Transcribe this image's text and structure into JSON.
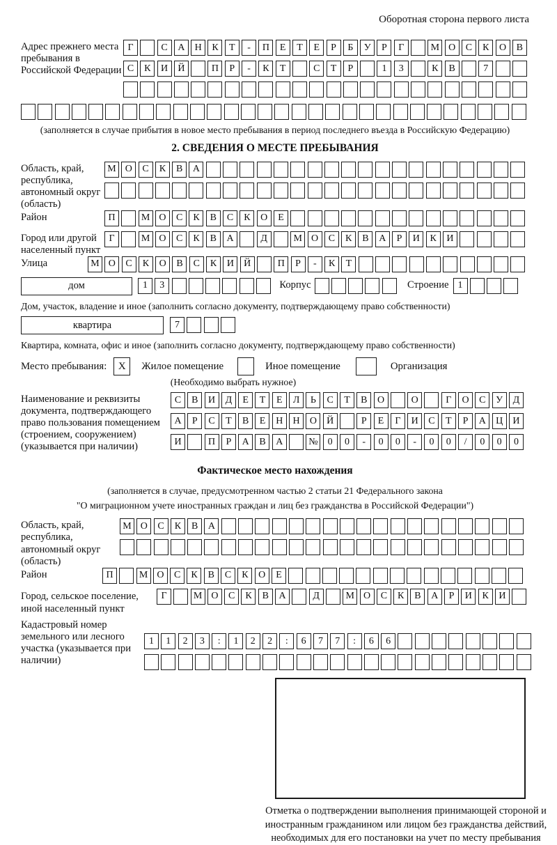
{
  "page": {
    "header_note": "Оборотная сторона первого листа"
  },
  "prev_address": {
    "label": "Адрес прежнего места пребывания в Российской Федерации",
    "row1": {
      "text": "Г САНКТ-ПЕТЕРБУРГ МОСКОВ",
      "count": 24
    },
    "row2": {
      "text": "СКИЙ ПР-КТ СТР 13 КВ 7",
      "count": 24
    },
    "row3": {
      "text": "",
      "count": 24
    },
    "row4": {
      "text": "",
      "count": 30
    },
    "note": "(заполняется в случае прибытия в новое место пребывания в период последнего въезда в Российскую Федерацию)"
  },
  "section2": {
    "title": "2. СВЕДЕНИЯ О МЕСТЕ ПРЕБЫВАНИЯ",
    "region_label": "Область, край, республика, автономный округ (область)",
    "region_row1": {
      "text": "МОСКВА",
      "count": 25
    },
    "region_row2": {
      "text": "",
      "count": 25
    },
    "district_label": "Район",
    "district_row": {
      "text": "П МОСКВСКОЕ",
      "count": 25
    },
    "city_label": "Город или другой населенный пункт",
    "city_row": {
      "text": "Г МОСКВА Д МОСКВАРИКИ",
      "count": 25
    },
    "street_label": "Улица",
    "street_row": {
      "text": "МОСКОВСКИЙ ПР-КТ",
      "count": 26
    },
    "house_box_label": "дом",
    "house_row": {
      "text": "13",
      "count": 8
    },
    "korpus_label": "Корпус",
    "korpus_row": {
      "text": "",
      "count": 5
    },
    "stroenie_label": "Строение",
    "stroenie_row": {
      "text": "1",
      "count": 4
    },
    "house_note": "Дом, участок, владение и иное (заполнить согласно документу, подтверждающему право собственности)",
    "apartment_box_label": "квартира",
    "apartment_row": {
      "text": "7",
      "count": 4
    },
    "apartment_note": "Квартира, комната, офис и иное (заполнить согласно документу, подтверждающему право собственности)",
    "stay_label": "Место пребывания:",
    "stay_options": [
      {
        "label": "Жилое помещение",
        "mark": "X"
      },
      {
        "label": "Иное помещение",
        "mark": ""
      },
      {
        "label": "Организация",
        "mark": ""
      }
    ],
    "stay_note": "(Необходимо выбрать нужное)",
    "doc_label": "Наименование и реквизиты документа, подтверждающего право пользования помещением (строением, сооружением) (указывается при наличии)",
    "doc_row1": {
      "text": "СВИДЕТЕЛЬСТВО О ГОСУД",
      "count": 21
    },
    "doc_row2": {
      "text": "АРСТВЕННОЙ РЕГИСТРАЦИ",
      "count": 21
    },
    "doc_row3": {
      "text": "И ПРАВА №00-00-00/000",
      "count": 21
    }
  },
  "fact": {
    "title": "Фактическое место нахождения",
    "note_line1": "(заполняется в случае, предусмотренном частью 2 статьи 21 Федерального закона",
    "note_line2": "\"О миграционном учете иностранных граждан и лиц без гражданства в Российской Федерации\")",
    "region_label": "Область, край, республика, автономный округ (область)",
    "region_row1": {
      "text": "МОСКВА",
      "count": 24
    },
    "region_row2": {
      "text": "",
      "count": 24
    },
    "district_label": "Район",
    "district_row": {
      "text": "П МОСКВСКОЕ",
      "count": 25
    },
    "city_label": "Город, сельское поселение, иной населенный пункт",
    "city_row": {
      "text": "Г МОСКВА Д МОСКВАРИКИ",
      "count": 22
    },
    "cadastre_label": "Кадастровый номер земельного или лесного участка (указывается при наличии)",
    "cadastre_row1": {
      "text": "1123:122:677:66",
      "count": 23
    },
    "cadastre_row2": {
      "text": "",
      "count": 23
    },
    "stamp_caption": "Отметка о подтверждении выполнения принимающей стороной и иностранным гражданином или лицом без гражданства действий, необходимых для его постановки на учет по месту пребывания"
  }
}
